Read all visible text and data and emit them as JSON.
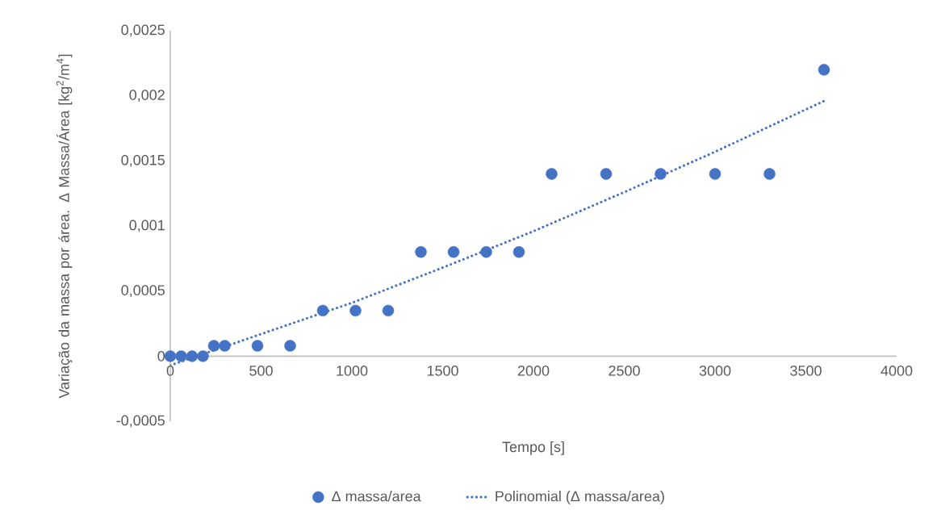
{
  "chart_data": {
    "type": "scatter",
    "xlabel": "Tempo [s]",
    "ylabel": "Variação da massa por área. Δ Massa/Área [kg$^{2}$/m$^{4}$]",
    "series": [
      {
        "name": "Δ massa/area",
        "color": "#4472c4",
        "marker": "circle",
        "x": [
          0,
          60,
          120,
          180,
          240,
          300,
          480,
          660,
          840,
          1020,
          1200,
          1380,
          1560,
          1740,
          1920,
          2100,
          2400,
          2700,
          3000,
          3300,
          3600
        ],
        "values": [
          0,
          0,
          0,
          0,
          8e-05,
          8e-05,
          8e-05,
          8e-05,
          0.00035,
          0.00035,
          0.00035,
          0.0008,
          0.0008,
          0.0008,
          0.0008,
          0.0014,
          0.0014,
          0.0014,
          0.0014,
          0.0014,
          0.0022
        ]
      },
      {
        "name": "Polinomial (Δ massa/area)",
        "type": "line",
        "color": "#4472c4",
        "line_style": "dotted",
        "marker": "none",
        "x": [
          0,
          500,
          1000,
          1500,
          2000,
          2500,
          3000,
          3600
        ],
        "values": [
          -7e-05,
          0.00017,
          0.00041,
          0.00068,
          0.00096,
          0.00126,
          0.00157,
          0.00196
        ]
      }
    ],
    "xlim": [
      0,
      4000
    ],
    "ylim": [
      -0.0005,
      0.0025
    ],
    "xticks": [
      0,
      500,
      1000,
      1500,
      2000,
      2500,
      3000,
      3500,
      4000
    ],
    "yticks": [
      {
        "value": -0.0005,
        "label": "-0,0005"
      },
      {
        "value": 0,
        "label": "0"
      },
      {
        "value": 0.0005,
        "label": "0,0005"
      },
      {
        "value": 0.001,
        "label": "0,001"
      },
      {
        "value": 0.0015,
        "label": "0,0015"
      },
      {
        "value": 0.002,
        "label": "0,002"
      },
      {
        "value": 0.0025,
        "label": "0,0025"
      }
    ],
    "legend": "bottom"
  }
}
